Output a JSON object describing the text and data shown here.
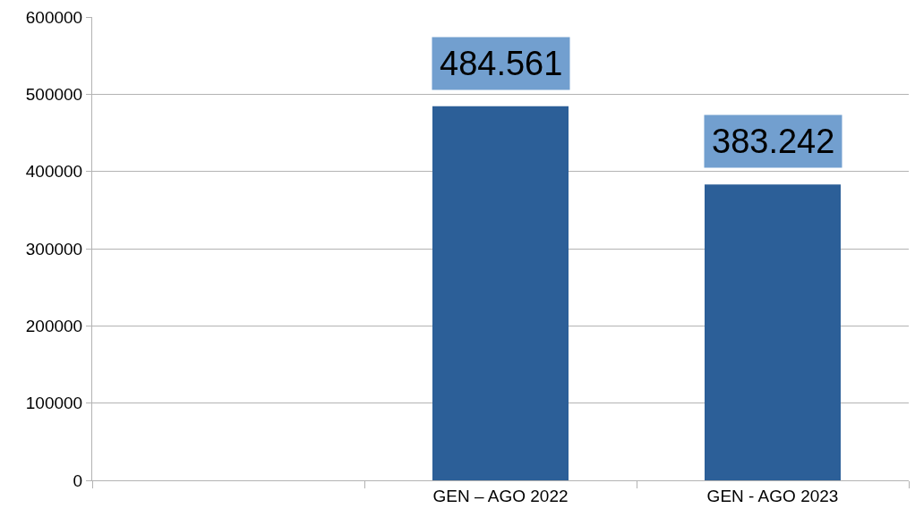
{
  "chart_data": {
    "type": "bar",
    "categories": [
      null,
      "GEN – AGO 2022",
      "GEN - AGO 2023"
    ],
    "values": [
      null,
      484561,
      383242
    ],
    "value_labels": [
      null,
      "484.561",
      "383.242"
    ],
    "color": "#2c5f98",
    "ylim": [
      0,
      600000
    ],
    "yticks": [
      0,
      100000,
      200000,
      300000,
      400000,
      500000,
      600000
    ],
    "grid": "y",
    "legend": false
  }
}
